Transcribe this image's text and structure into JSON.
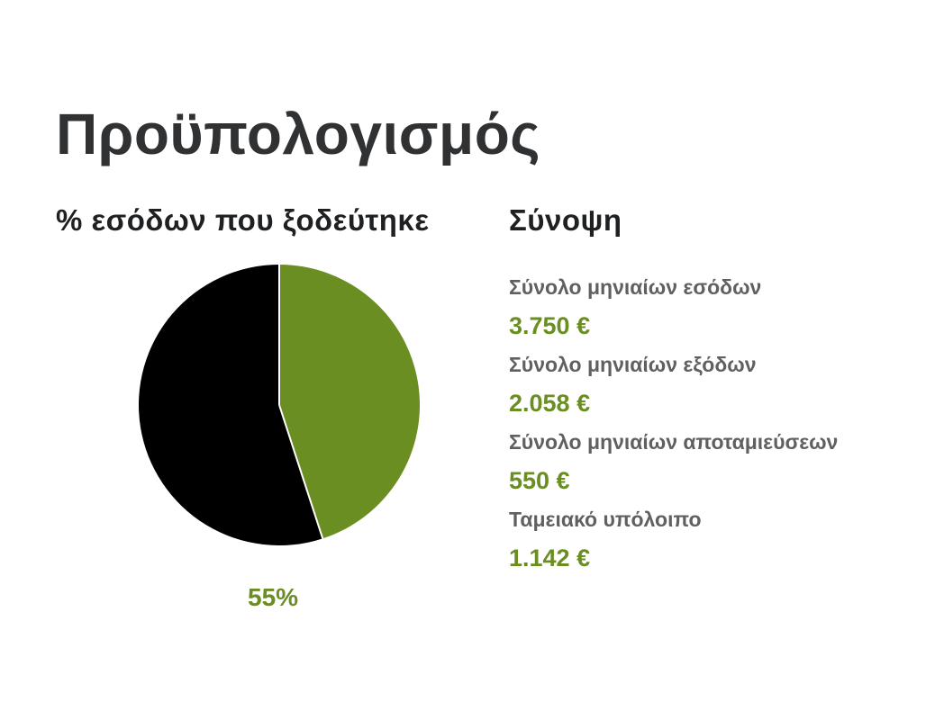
{
  "title": "Προϋπολογισμός",
  "chart_heading": "% εσόδων που ξοδεύτηκε",
  "summary_heading": "Σύνοψη",
  "colors": {
    "accent": "#6b8e23",
    "dark": "#000000"
  },
  "chart_data": {
    "type": "pie",
    "values": [
      55,
      45
    ],
    "colors": [
      "#000000",
      "#6b8e23"
    ],
    "data_label": "55%"
  },
  "summary": [
    {
      "label": "Σύνολο μηνιαίων εσόδων",
      "value": "3.750 €"
    },
    {
      "label": "Σύνολο μηνιαίων εξόδων",
      "value": "2.058 €"
    },
    {
      "label": "Σύνολο μηνιαίων αποταμιεύσεων",
      "value": "550 €"
    },
    {
      "label": "Ταμειακό υπόλοιπο",
      "value": "1.142 €"
    }
  ]
}
